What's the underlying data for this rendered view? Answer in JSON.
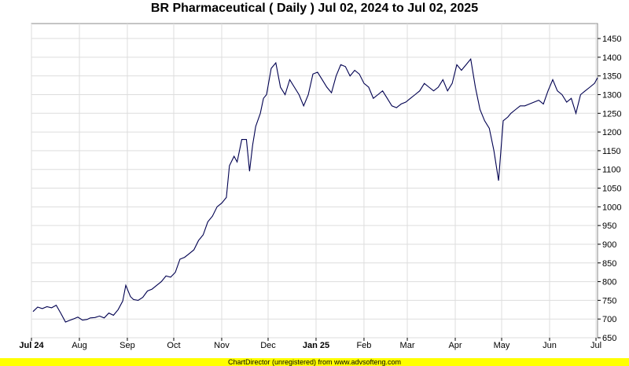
{
  "chart_data": {
    "type": "line",
    "title": "BR Pharmaceutical ( Daily ) Jul 02, 2024 to Jul 02, 2025",
    "xlabel": "",
    "ylabel": "",
    "ylim": [
      650,
      1490
    ],
    "grid": true,
    "y_ticks": [
      650,
      700,
      750,
      800,
      850,
      900,
      950,
      1000,
      1050,
      1100,
      1150,
      1200,
      1250,
      1300,
      1350,
      1400,
      1450
    ],
    "x_ticks": [
      {
        "label": "Jul 24",
        "date": "2024-07-01",
        "bold": true
      },
      {
        "label": "Aug",
        "date": "2024-08-01",
        "bold": false
      },
      {
        "label": "Sep",
        "date": "2024-09-01",
        "bold": false
      },
      {
        "label": "Oct",
        "date": "2024-10-01",
        "bold": false
      },
      {
        "label": "Nov",
        "date": "2024-11-01",
        "bold": false
      },
      {
        "label": "Dec",
        "date": "2024-12-01",
        "bold": false
      },
      {
        "label": "Jan 25",
        "date": "2025-01-01",
        "bold": true
      },
      {
        "label": "Feb",
        "date": "2025-02-01",
        "bold": false
      },
      {
        "label": "Mar",
        "date": "2025-03-01",
        "bold": false
      },
      {
        "label": "Apr",
        "date": "2025-04-01",
        "bold": false
      },
      {
        "label": "May",
        "date": "2025-05-01",
        "bold": false
      },
      {
        "label": "Jun",
        "date": "2025-06-01",
        "bold": false
      },
      {
        "label": "Jul",
        "date": "2025-07-01",
        "bold": false
      }
    ],
    "x_range": [
      "2024-07-01",
      "2025-07-02"
    ],
    "line_color": "#000050",
    "series": [
      {
        "x": [
          "2024-07-02",
          "2024-07-05",
          "2024-07-08",
          "2024-07-11",
          "2024-07-14",
          "2024-07-17",
          "2024-07-20",
          "2024-07-23",
          "2024-07-26",
          "2024-07-28",
          "2024-07-31",
          "2024-08-03",
          "2024-08-06",
          "2024-08-08",
          "2024-08-11",
          "2024-08-14",
          "2024-08-17",
          "2024-08-20",
          "2024-08-23",
          "2024-08-26",
          "2024-08-29",
          "2024-08-31",
          "2024-09-03",
          "2024-09-05",
          "2024-09-08",
          "2024-09-11",
          "2024-09-14",
          "2024-09-17",
          "2024-09-20",
          "2024-09-23",
          "2024-09-26",
          "2024-09-29",
          "2024-10-02",
          "2024-10-05",
          "2024-10-08",
          "2024-10-11",
          "2024-10-14",
          "2024-10-17",
          "2024-10-20",
          "2024-10-23",
          "2024-10-26",
          "2024-10-29",
          "2024-11-01",
          "2024-11-04",
          "2024-11-06",
          "2024-11-09",
          "2024-11-11",
          "2024-11-14",
          "2024-11-17",
          "2024-11-19",
          "2024-11-21",
          "2024-11-23",
          "2024-11-26",
          "2024-11-28",
          "2024-11-30",
          "2024-12-03",
          "2024-12-06",
          "2024-12-09",
          "2024-12-12",
          "2024-12-15",
          "2024-12-18",
          "2024-12-21",
          "2024-12-24",
          "2024-12-27",
          "2024-12-30",
          "2025-01-02",
          "2025-01-05",
          "2025-01-08",
          "2025-01-11",
          "2025-01-14",
          "2025-01-17",
          "2025-01-20",
          "2025-01-23",
          "2025-01-26",
          "2025-01-29",
          "2025-02-01",
          "2025-02-04",
          "2025-02-07",
          "2025-02-10",
          "2025-02-13",
          "2025-02-16",
          "2025-02-19",
          "2025-02-22",
          "2025-02-25",
          "2025-02-28",
          "2025-03-03",
          "2025-03-06",
          "2025-03-09",
          "2025-03-12",
          "2025-03-15",
          "2025-03-18",
          "2025-03-21",
          "2025-03-24",
          "2025-03-27",
          "2025-03-30",
          "2025-04-02",
          "2025-04-05",
          "2025-04-08",
          "2025-04-11",
          "2025-04-14",
          "2025-04-17",
          "2025-04-20",
          "2025-04-23",
          "2025-04-26",
          "2025-04-29",
          "2025-05-02",
          "2025-05-05",
          "2025-05-07",
          "2025-05-10",
          "2025-05-13",
          "2025-05-16",
          "2025-05-19",
          "2025-05-22",
          "2025-05-25",
          "2025-05-28",
          "2025-05-31",
          "2025-06-03",
          "2025-06-06",
          "2025-06-09",
          "2025-06-12",
          "2025-06-15",
          "2025-06-18",
          "2025-06-21",
          "2025-06-24",
          "2025-06-27",
          "2025-06-30",
          "2025-07-02"
        ],
        "values": [
          720,
          732,
          728,
          733,
          730,
          737,
          715,
          692,
          697,
          700,
          705,
          697,
          699,
          703,
          704,
          708,
          703,
          716,
          710,
          725,
          748,
          790,
          760,
          752,
          750,
          758,
          775,
          780,
          790,
          800,
          815,
          812,
          825,
          860,
          865,
          875,
          885,
          910,
          925,
          960,
          975,
          1000,
          1010,
          1025,
          1110,
          1135,
          1120,
          1180,
          1180,
          1095,
          1165,
          1215,
          1250,
          1290,
          1300,
          1370,
          1385,
          1320,
          1300,
          1340,
          1320,
          1300,
          1270,
          1300,
          1355,
          1360,
          1340,
          1320,
          1305,
          1350,
          1380,
          1375,
          1350,
          1365,
          1355,
          1330,
          1320,
          1290,
          1300,
          1310,
          1290,
          1270,
          1265,
          1275,
          1280,
          1290,
          1300,
          1310,
          1330,
          1320,
          1310,
          1320,
          1340,
          1310,
          1330,
          1380,
          1365,
          1380,
          1395,
          1320,
          1260,
          1230,
          1210,
          1150,
          1070,
          1230,
          1240,
          1250,
          1260,
          1270,
          1270,
          1275,
          1280,
          1285,
          1275,
          1310,
          1340,
          1310,
          1300,
          1280,
          1290,
          1250,
          1300,
          1310,
          1320,
          1330,
          1345
        ]
      }
    ]
  },
  "footer": {
    "text": "ChartDirector (unregistered) from www.advsofteng.com"
  }
}
